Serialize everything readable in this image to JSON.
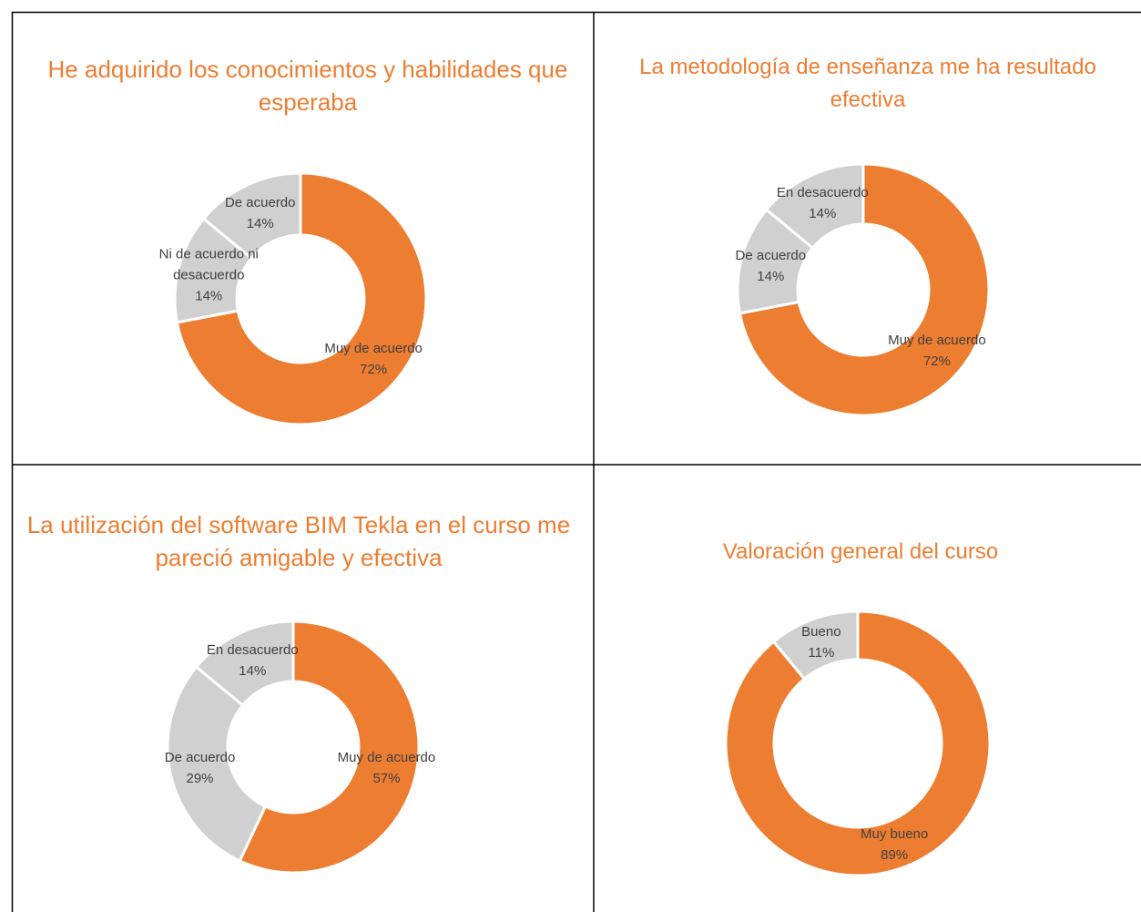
{
  "chart_data": [
    {
      "type": "pie",
      "title": "He adquirido los conocimientos y habilidades que esperaba",
      "categories": [
        "Muy de acuerdo",
        "Ni de acuerdo ni desacuerdo",
        "De acuerdo"
      ],
      "values": [
        72,
        14,
        14
      ],
      "value_labels": [
        "72%",
        "14%",
        "14%"
      ],
      "colors": [
        "#ED7D31",
        "#D0D0D0",
        "#D0D0D0"
      ]
    },
    {
      "type": "pie",
      "title": "La metodología de enseñanza me ha resultado efectiva",
      "categories": [
        "Muy de acuerdo",
        "De acuerdo",
        "En desacuerdo"
      ],
      "values": [
        72,
        14,
        14
      ],
      "value_labels": [
        "72%",
        "14%",
        "14%"
      ],
      "colors": [
        "#ED7D31",
        "#D0D0D0",
        "#D0D0D0"
      ]
    },
    {
      "type": "pie",
      "title": "La utilización del software BIM Tekla en el curso me pareció amigable y efectiva",
      "categories": [
        "Muy de acuerdo",
        "De acuerdo",
        "En desacuerdo"
      ],
      "values": [
        57,
        29,
        14
      ],
      "value_labels": [
        "57%",
        "29%",
        "14%"
      ],
      "colors": [
        "#ED7D31",
        "#D0D0D0",
        "#D0D0D0"
      ]
    },
    {
      "type": "pie",
      "title": "Valoración general del curso",
      "categories": [
        "Muy bueno",
        "Bueno"
      ],
      "values": [
        89,
        11
      ],
      "value_labels": [
        "89%",
        "11%"
      ],
      "colors": [
        "#ED7D31",
        "#D0D0D0"
      ]
    }
  ]
}
